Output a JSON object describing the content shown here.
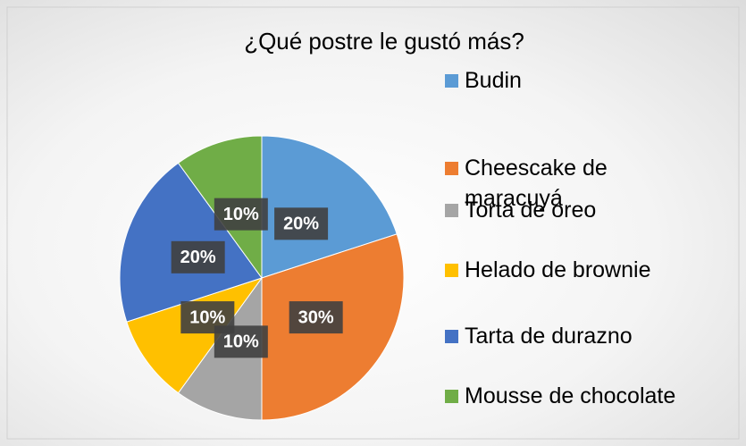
{
  "chart_data": {
    "type": "pie",
    "title": "¿Qué postre le gustó más?",
    "categories": [
      "Budin",
      "Cheescake de maracuyá",
      "Torta de oreo",
      "Helado de brownie",
      "Tarta de durazno",
      "Mousse de chocolate"
    ],
    "values": [
      20,
      30,
      10,
      10,
      20,
      10
    ],
    "value_labels": [
      "20%",
      "30%",
      "10%",
      "10%",
      "20%",
      "10%"
    ],
    "colors": [
      "#5b9bd5",
      "#ed7d31",
      "#a5a5a5",
      "#ffc000",
      "#4472c4",
      "#70ad47"
    ],
    "legend": "right"
  }
}
